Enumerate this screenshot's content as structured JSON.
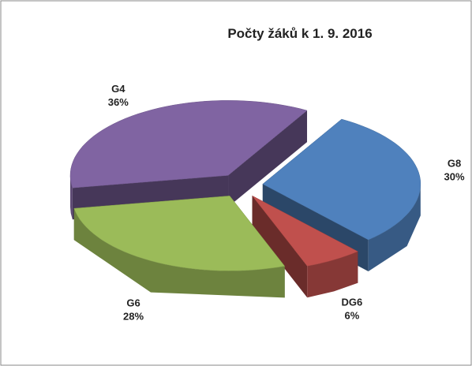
{
  "chart_data": {
    "type": "pie",
    "title": "Počty žáků k 1. 9. 2016",
    "categories": [
      "G8",
      "DG6",
      "G6",
      "G4"
    ],
    "values": [
      30,
      6,
      28,
      36
    ],
    "value_labels": [
      "30%",
      "6%",
      "28%",
      "36%"
    ],
    "colors": [
      "#4f81bd",
      "#c0504d",
      "#9bbb59",
      "#8064a2"
    ]
  }
}
